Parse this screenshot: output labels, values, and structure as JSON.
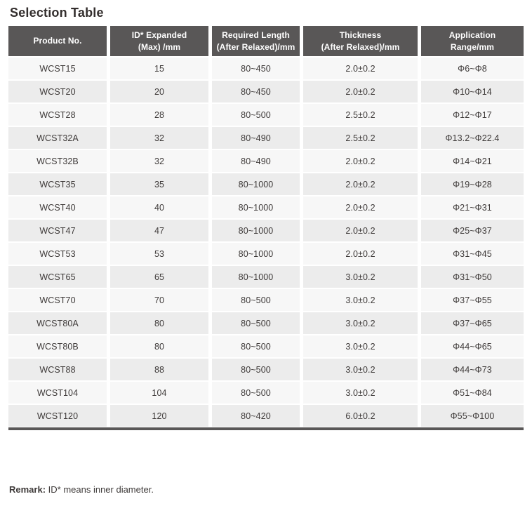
{
  "page": {
    "title": "Selection Table",
    "remark_label": "Remark:",
    "remark_text": " ID* means inner diameter."
  },
  "table": {
    "columns": [
      {
        "key": "product_no",
        "label": "Product No."
      },
      {
        "key": "id_expanded",
        "label": "ID* Expanded\n(Max) /mm"
      },
      {
        "key": "required_length",
        "label": "Required Length\n(After Relaxed)/mm"
      },
      {
        "key": "thickness",
        "label": "Thickness\n(After Relaxed)/mm"
      },
      {
        "key": "application_range",
        "label": "Application\nRange/mm"
      }
    ],
    "rows": [
      {
        "product_no": "WCST15",
        "id_expanded": "15",
        "required_length": "80~450",
        "thickness": "2.0±0.2",
        "application_range": "Φ6~Φ8"
      },
      {
        "product_no": "WCST20",
        "id_expanded": "20",
        "required_length": "80~450",
        "thickness": "2.0±0.2",
        "application_range": "Φ10~Φ14"
      },
      {
        "product_no": "WCST28",
        "id_expanded": "28",
        "required_length": "80~500",
        "thickness": "2.5±0.2",
        "application_range": "Φ12~Φ17"
      },
      {
        "product_no": "WCST32A",
        "id_expanded": "32",
        "required_length": "80~490",
        "thickness": "2.5±0.2",
        "application_range": "Φ13.2~Φ22.4"
      },
      {
        "product_no": "WCST32B",
        "id_expanded": "32",
        "required_length": "80~490",
        "thickness": "2.0±0.2",
        "application_range": "Φ14~Φ21"
      },
      {
        "product_no": "WCST35",
        "id_expanded": "35",
        "required_length": "80~1000",
        "thickness": "2.0±0.2",
        "application_range": "Φ19~Φ28"
      },
      {
        "product_no": "WCST40",
        "id_expanded": "40",
        "required_length": "80~1000",
        "thickness": "2.0±0.2",
        "application_range": "Φ21~Φ31"
      },
      {
        "product_no": "WCST47",
        "id_expanded": "47",
        "required_length": "80~1000",
        "thickness": "2.0±0.2",
        "application_range": "Φ25~Φ37"
      },
      {
        "product_no": "WCST53",
        "id_expanded": "53",
        "required_length": "80~1000",
        "thickness": "2.0±0.2",
        "application_range": "Φ31~Φ45"
      },
      {
        "product_no": "WCST65",
        "id_expanded": "65",
        "required_length": "80~1000",
        "thickness": "3.0±0.2",
        "application_range": "Φ31~Φ50"
      },
      {
        "product_no": "WCST70",
        "id_expanded": "70",
        "required_length": "80~500",
        "thickness": "3.0±0.2",
        "application_range": "Φ37~Φ55"
      },
      {
        "product_no": "WCST80A",
        "id_expanded": "80",
        "required_length": "80~500",
        "thickness": "3.0±0.2",
        "application_range": "Φ37~Φ65"
      },
      {
        "product_no": "WCST80B",
        "id_expanded": "80",
        "required_length": "80~500",
        "thickness": "3.0±0.2",
        "application_range": "Φ44~Φ65"
      },
      {
        "product_no": "WCST88",
        "id_expanded": "88",
        "required_length": "80~500",
        "thickness": "3.0±0.2",
        "application_range": "Φ44~Φ73"
      },
      {
        "product_no": "WCST104",
        "id_expanded": "104",
        "required_length": "80~500",
        "thickness": "3.0±0.2",
        "application_range": "Φ51~Φ84"
      },
      {
        "product_no": "WCST120",
        "id_expanded": "120",
        "required_length": "80~420",
        "thickness": "6.0±0.2",
        "application_range": "Φ55~Φ100"
      }
    ]
  },
  "colors": {
    "header_bg": "#595757",
    "header_text": "#ffffff",
    "row_odd": "#f7f7f7",
    "row_even": "#ececec",
    "text": "#3e3a39",
    "title": "#332e2d"
  }
}
